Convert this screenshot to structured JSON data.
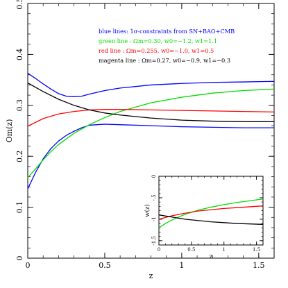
{
  "chart_data": [
    {
      "type": "line",
      "xlabel": "z",
      "ylabel": "Om(z)",
      "xlim": [
        0,
        1.6
      ],
      "ylim": [
        0,
        0.5
      ],
      "xticks": [
        0,
        0.5,
        1,
        1.5
      ],
      "xtick_labels": [
        "0",
        "0.5",
        "1",
        "1.5"
      ],
      "yticks": [
        0,
        0.1,
        0.2,
        0.3,
        0.4,
        0.5
      ],
      "ytick_labels": [
        "0",
        "0.1",
        "0.2",
        "0.3",
        "0.4",
        "0.5"
      ],
      "grid": false,
      "legend_position": "top-right",
      "legend": [
        {
          "text": "blue lines: 1σ-constraints from SN+BAO+CMB",
          "color": "#0000ff"
        },
        {
          "text": "green line : Ωm=0.30, w0=−1.2, w1=1.1",
          "color": "#00dd00"
        },
        {
          "text": "red line : Ωm=0.255, w0=−1.0, w1=0.5",
          "color": "#ff0000"
        },
        {
          "text": "magenta line : Ωm=0.27, w0=−0.9, w1=−0.3",
          "color": "#000000"
        }
      ],
      "series": [
        {
          "color": "#0000ff",
          "x": [
            0,
            0.05,
            0.1,
            0.15,
            0.2,
            0.25,
            0.3,
            0.35,
            0.4,
            0.5,
            0.6,
            0.8,
            1.0,
            1.2,
            1.4,
            1.6
          ],
          "y": [
            0.363,
            0.353,
            0.342,
            0.332,
            0.323,
            0.318,
            0.317,
            0.318,
            0.322,
            0.329,
            0.334,
            0.34,
            0.343,
            0.345,
            0.346,
            0.347
          ]
        },
        {
          "color": "#0000ff",
          "x": [
            0,
            0.05,
            0.1,
            0.15,
            0.2,
            0.25,
            0.3,
            0.35,
            0.4,
            0.5,
            0.6,
            0.8,
            1.0,
            1.2,
            1.4,
            1.6
          ],
          "y": [
            0.136,
            0.168,
            0.195,
            0.215,
            0.23,
            0.241,
            0.249,
            0.256,
            0.261,
            0.263,
            0.262,
            0.26,
            0.258,
            0.257,
            0.256,
            0.256
          ]
        },
        {
          "color": "#00dd00",
          "x": [
            0,
            0.05,
            0.1,
            0.15,
            0.2,
            0.3,
            0.4,
            0.5,
            0.6,
            0.8,
            1.0,
            1.2,
            1.4,
            1.6
          ],
          "y": [
            0.158,
            0.175,
            0.193,
            0.209,
            0.223,
            0.245,
            0.262,
            0.276,
            0.288,
            0.305,
            0.316,
            0.324,
            0.329,
            0.332
          ]
        },
        {
          "color": "#ff0000",
          "x": [
            0,
            0.1,
            0.2,
            0.3,
            0.4,
            0.5,
            0.6,
            0.8,
            1.0,
            1.2,
            1.4,
            1.6
          ],
          "y": [
            0.259,
            0.274,
            0.283,
            0.288,
            0.291,
            0.292,
            0.292,
            0.291,
            0.29,
            0.289,
            0.288,
            0.287
          ]
        },
        {
          "color": "#000000",
          "x": [
            0,
            0.1,
            0.2,
            0.3,
            0.4,
            0.5,
            0.6,
            0.8,
            1.0,
            1.2,
            1.4,
            1.6
          ],
          "y": [
            0.344,
            0.327,
            0.312,
            0.3,
            0.291,
            0.285,
            0.281,
            0.275,
            0.271,
            0.269,
            0.268,
            0.268
          ]
        }
      ]
    },
    {
      "type": "line",
      "xlabel": "z",
      "ylabel": "w(z)",
      "xlim": [
        0,
        1.6
      ],
      "ylim": [
        -1.6,
        0
      ],
      "xticks": [
        0,
        0.5,
        1,
        1.5
      ],
      "xtick_labels": [
        "0",
        "0.5",
        "1",
        "1.5"
      ],
      "yticks": [
        0,
        -0.5,
        -1,
        -1.5
      ],
      "ytick_labels": [
        "0",
        "-.5",
        "-1",
        "-1.5"
      ],
      "grid": false,
      "series": [
        {
          "color": "#00dd00",
          "x": [
            0,
            0.1,
            0.2,
            0.3,
            0.4,
            0.6,
            0.8,
            1.0,
            1.2,
            1.4,
            1.6
          ],
          "y": [
            -1.2,
            -1.1,
            -1.02,
            -0.95,
            -0.89,
            -0.79,
            -0.72,
            -0.66,
            -0.61,
            -0.57,
            -0.53
          ]
        },
        {
          "color": "#ff0000",
          "x": [
            0,
            0.2,
            0.4,
            0.6,
            0.8,
            1.0,
            1.2,
            1.4,
            1.6
          ],
          "y": [
            -1.0,
            -0.92,
            -0.86,
            -0.81,
            -0.78,
            -0.75,
            -0.73,
            -0.71,
            -0.69
          ]
        },
        {
          "color": "#000000",
          "x": [
            0,
            0.2,
            0.4,
            0.6,
            0.8,
            1.0,
            1.2,
            1.4,
            1.6
          ],
          "y": [
            -0.9,
            -0.95,
            -1.0,
            -1.03,
            -1.06,
            -1.08,
            -1.1,
            -1.11,
            -1.12
          ]
        }
      ]
    }
  ]
}
